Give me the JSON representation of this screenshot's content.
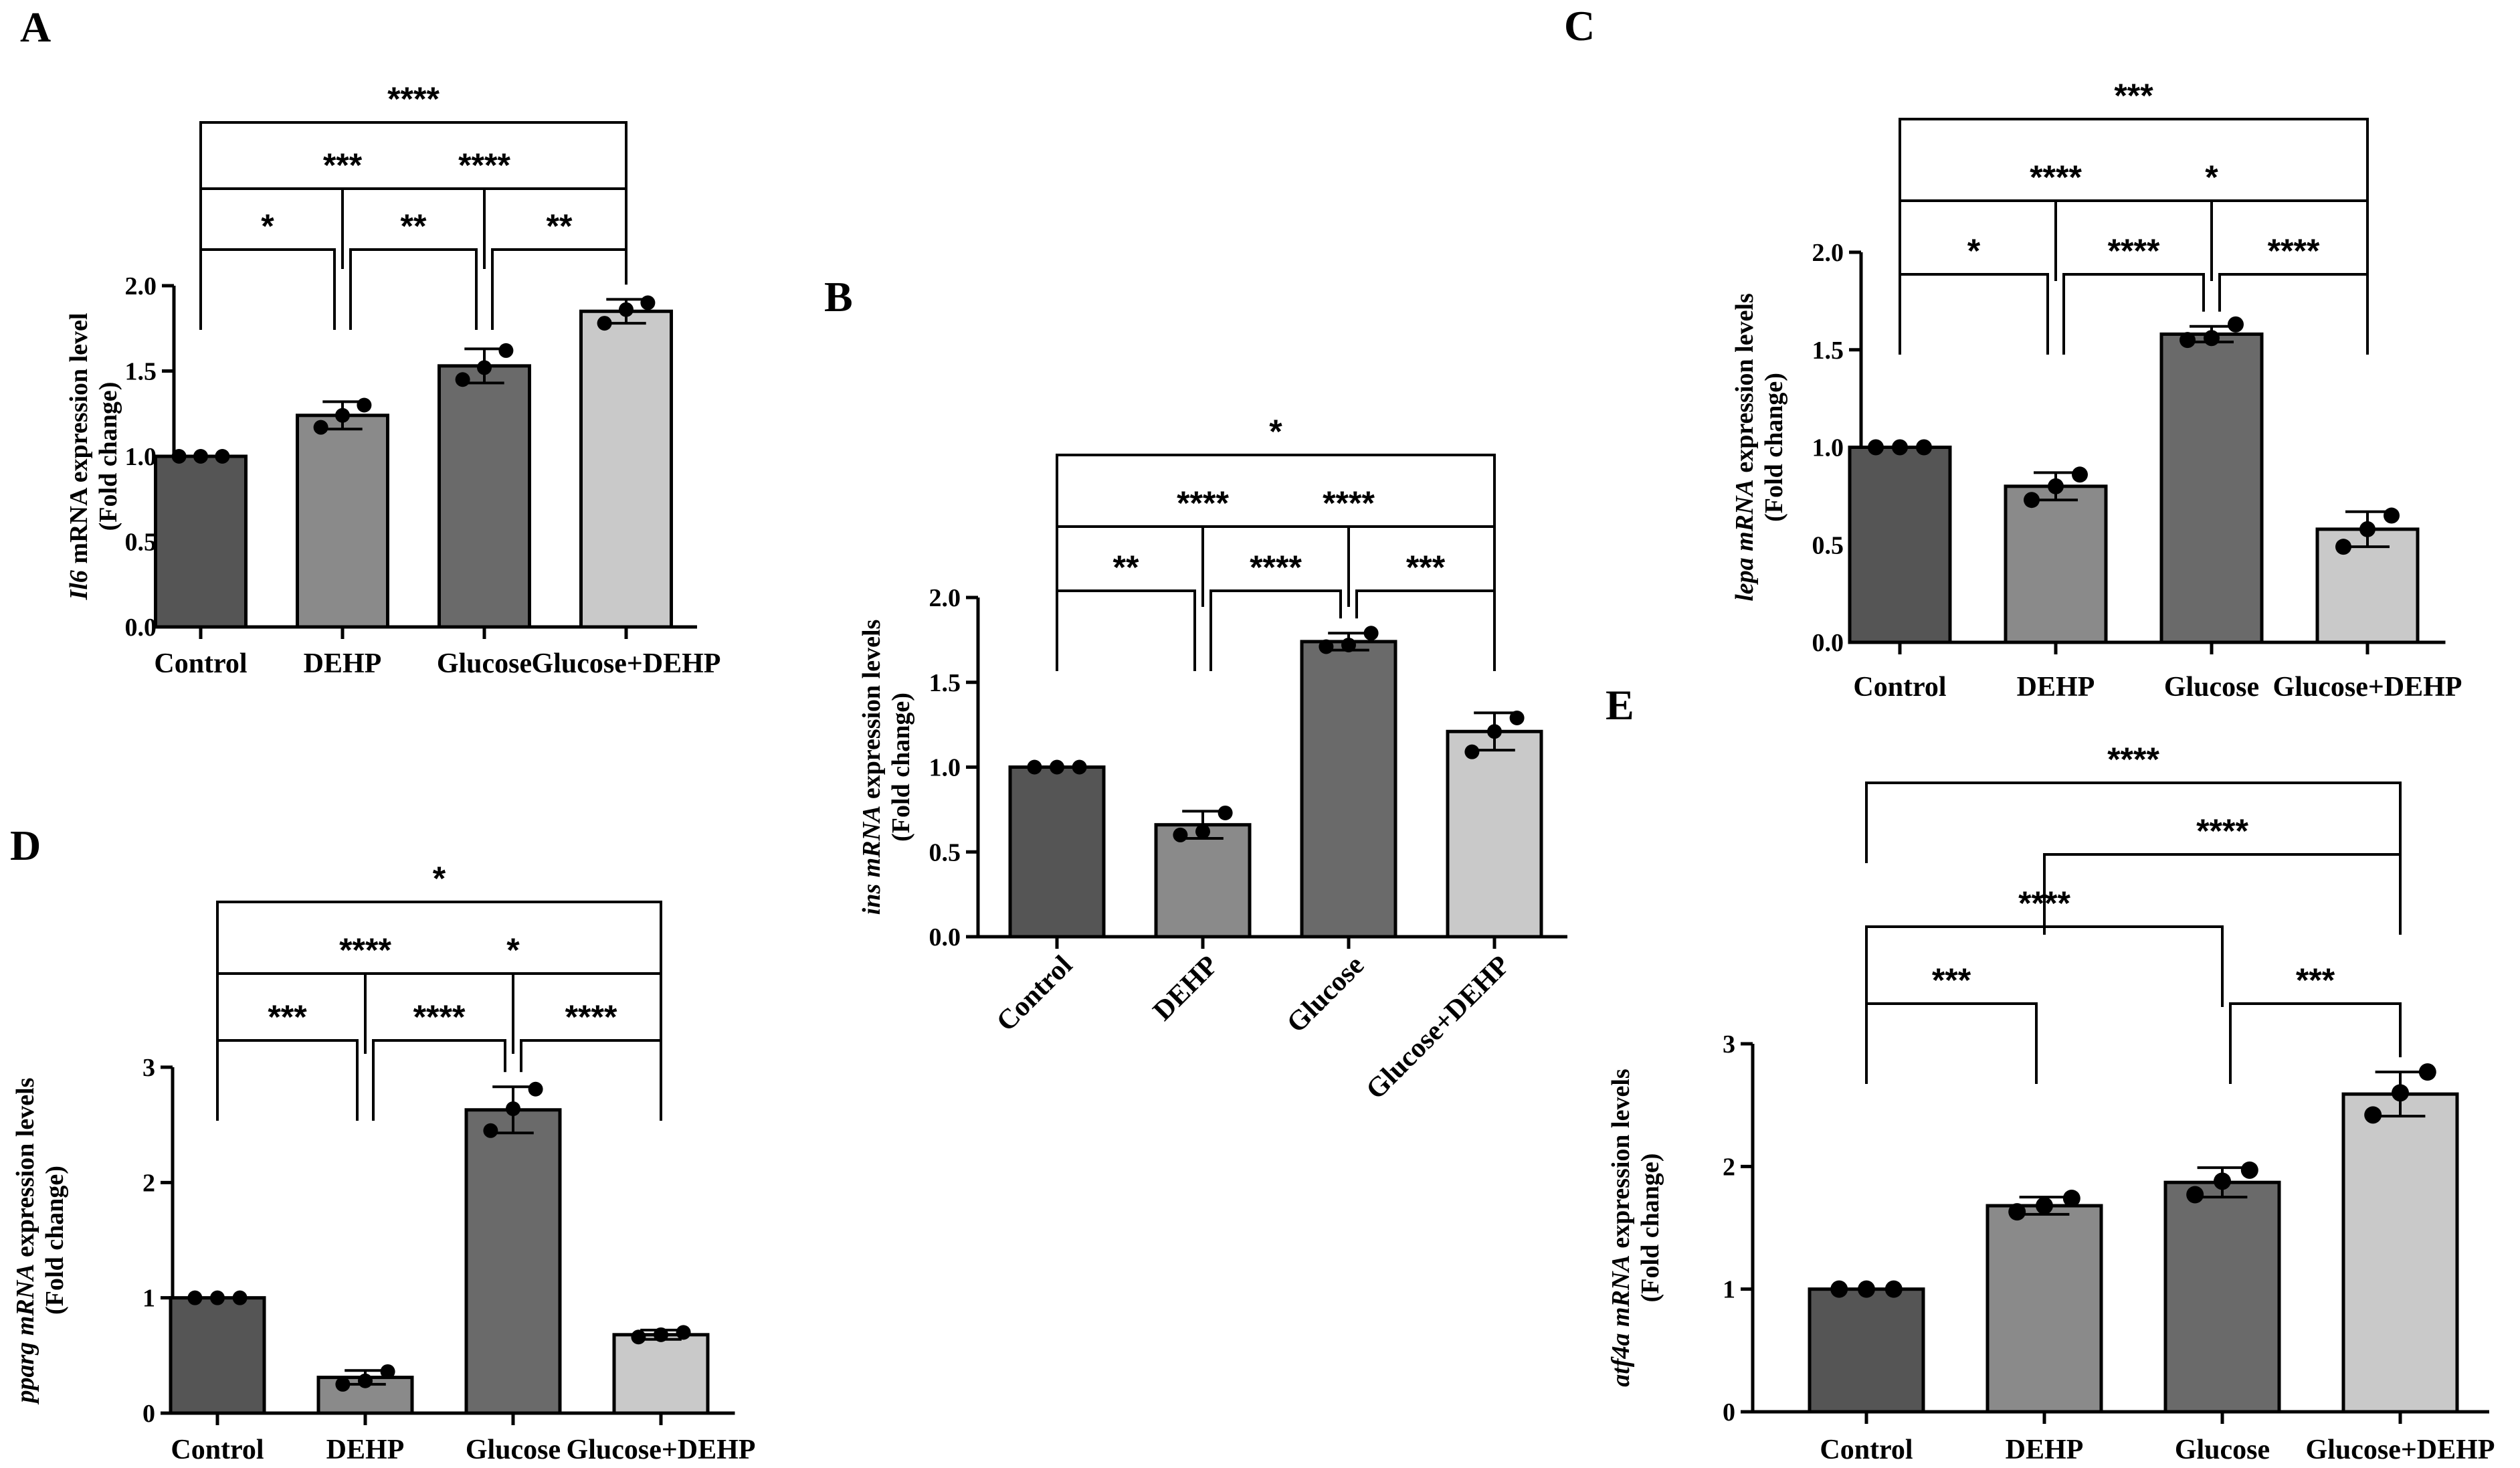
{
  "chart_data": [
    {
      "panel": "A",
      "type": "bar",
      "categories": [
        "Control",
        "DEHP",
        "Glucose",
        "Glucose+DEHP"
      ],
      "values": [
        1.0,
        1.24,
        1.53,
        1.85
      ],
      "errors": [
        0.0,
        0.08,
        0.1,
        0.07
      ],
      "points": [
        [
          1.0,
          1.0,
          1.0
        ],
        [
          1.17,
          1.24,
          1.3
        ],
        [
          1.45,
          1.52,
          1.62
        ],
        [
          1.78,
          1.86,
          1.9
        ]
      ],
      "bar_colors": [
        "#555555",
        "#8a8a8a",
        "#6a6a6a",
        "#c9c9c9"
      ],
      "ylabel_gene": "Il6",
      "ylabel_rest": " mRNA expression level",
      "ylabel_line2": "(Fold change)",
      "ylim": [
        0,
        2.0
      ],
      "yticks": [
        "0.0",
        "0.5",
        "1.0",
        "1.5",
        "2.0"
      ],
      "significance": [
        {
          "from": 0,
          "to": 1,
          "label": "*"
        },
        {
          "from": 1,
          "to": 2,
          "label": "**"
        },
        {
          "from": 2,
          "to": 3,
          "label": "**"
        },
        {
          "from": 0,
          "to": 2,
          "label": "***"
        },
        {
          "from": 1,
          "to": 3,
          "label": "****"
        },
        {
          "from": 0,
          "to": 3,
          "label": "****"
        }
      ]
    },
    {
      "panel": "B",
      "type": "bar",
      "categories": [
        "Control",
        "DEHP",
        "Glucose",
        "Glucose+DEHP"
      ],
      "values": [
        1.0,
        0.66,
        1.74,
        1.21
      ],
      "errors": [
        0.0,
        0.08,
        0.05,
        0.11
      ],
      "points": [
        [
          1.0,
          1.0,
          1.0
        ],
        [
          0.6,
          0.62,
          0.73
        ],
        [
          1.71,
          1.72,
          1.79
        ],
        [
          1.09,
          1.21,
          1.29
        ]
      ],
      "bar_colors": [
        "#555555",
        "#8a8a8a",
        "#6a6a6a",
        "#c9c9c9"
      ],
      "ylabel_gene": "ins mRNA",
      "ylabel_rest": " expression levels",
      "ylabel_line2": "(Fold change)",
      "ylim": [
        0,
        2.0
      ],
      "yticks": [
        "0.0",
        "0.5",
        "1.0",
        "1.5",
        "2.0"
      ],
      "significance": [
        {
          "from": 0,
          "to": 1,
          "label": "**"
        },
        {
          "from": 1,
          "to": 2,
          "label": "****"
        },
        {
          "from": 2,
          "to": 3,
          "label": "***"
        },
        {
          "from": 0,
          "to": 2,
          "label": "****"
        },
        {
          "from": 1,
          "to": 3,
          "label": "****"
        },
        {
          "from": 0,
          "to": 3,
          "label": "*"
        }
      ]
    },
    {
      "panel": "C",
      "type": "bar",
      "categories": [
        "Control",
        "DEHP",
        "Glucose",
        "Glucose+DEHP"
      ],
      "values": [
        1.0,
        0.8,
        1.58,
        0.58
      ],
      "errors": [
        0.0,
        0.07,
        0.04,
        0.09
      ],
      "points": [
        [
          1.0,
          1.0,
          1.0
        ],
        [
          0.73,
          0.8,
          0.86
        ],
        [
          1.55,
          1.56,
          1.63
        ],
        [
          0.49,
          0.58,
          0.65
        ]
      ],
      "bar_colors": [
        "#555555",
        "#8a8a8a",
        "#6a6a6a",
        "#c9c9c9"
      ],
      "ylabel_gene": "lepa mRNA",
      "ylabel_rest": " expression levels",
      "ylabel_line2": "(Fold change)",
      "ylim": [
        0,
        2.0
      ],
      "yticks": [
        "0.0",
        "0.5",
        "1.0",
        "1.5",
        "2.0"
      ],
      "significance": [
        {
          "from": 0,
          "to": 1,
          "label": "*"
        },
        {
          "from": 1,
          "to": 2,
          "label": "****"
        },
        {
          "from": 2,
          "to": 3,
          "label": "****"
        },
        {
          "from": 0,
          "to": 2,
          "label": "****"
        },
        {
          "from": 1,
          "to": 3,
          "label": "*"
        },
        {
          "from": 0,
          "to": 3,
          "label": "***"
        }
      ]
    },
    {
      "panel": "D",
      "type": "bar",
      "categories": [
        "Control",
        "DEHP",
        "Glucose",
        "Glucose+DEHP"
      ],
      "values": [
        1.0,
        0.31,
        2.63,
        0.68
      ],
      "errors": [
        0.0,
        0.06,
        0.2,
        0.04
      ],
      "points": [
        [
          1.0,
          1.0,
          1.0
        ],
        [
          0.25,
          0.28,
          0.36
        ],
        [
          2.45,
          2.64,
          2.81
        ],
        [
          0.66,
          0.68,
          0.7
        ]
      ],
      "bar_colors": [
        "#555555",
        "#8a8a8a",
        "#6a6a6a",
        "#c9c9c9"
      ],
      "ylabel_gene": "pparg  mRNA",
      "ylabel_rest": " expression levels",
      "ylabel_line2": "(Fold change)",
      "ylim": [
        0,
        3
      ],
      "yticks": [
        "0",
        "1",
        "2",
        "3"
      ],
      "significance": [
        {
          "from": 0,
          "to": 1,
          "label": "***"
        },
        {
          "from": 1,
          "to": 2,
          "label": "****"
        },
        {
          "from": 2,
          "to": 3,
          "label": "****"
        },
        {
          "from": 0,
          "to": 2,
          "label": "****"
        },
        {
          "from": 1,
          "to": 3,
          "label": "*"
        },
        {
          "from": 0,
          "to": 3,
          "label": "*"
        }
      ]
    },
    {
      "panel": "E",
      "type": "bar",
      "categories": [
        "Control",
        "DEHP",
        "Glucose",
        "Glucose+DEHP"
      ],
      "values": [
        1.0,
        1.68,
        1.87,
        2.59
      ],
      "errors": [
        0.0,
        0.07,
        0.12,
        0.18
      ],
      "points": [
        [
          1.0,
          1.0,
          1.0
        ],
        [
          1.63,
          1.68,
          1.74
        ],
        [
          1.77,
          1.88,
          1.97
        ],
        [
          2.42,
          2.6,
          2.77
        ]
      ],
      "bar_colors": [
        "#555555",
        "#8a8a8a",
        "#6a6a6a",
        "#c9c9c9"
      ],
      "ylabel_gene": "atf4a mRNA",
      "ylabel_rest": " expression levels",
      "ylabel_line2": "(Fold change)",
      "ylim": [
        0,
        3
      ],
      "yticks": [
        "0",
        "1",
        "2",
        "3"
      ],
      "significance": [
        {
          "from": 0,
          "to": 1,
          "label": "***"
        },
        {
          "from": 2,
          "to": 3,
          "label": "***"
        },
        {
          "from": 0,
          "to": 2,
          "label": "****"
        },
        {
          "from": 1,
          "to": 3,
          "label": "****"
        },
        {
          "from": 0,
          "to": 3,
          "label": "****"
        }
      ]
    }
  ]
}
